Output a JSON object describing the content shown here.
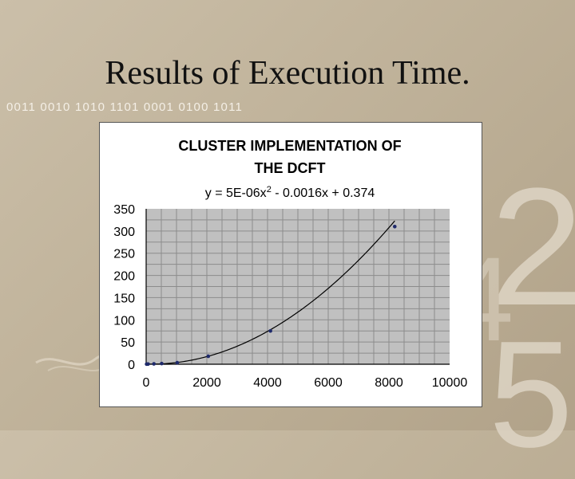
{
  "slide": {
    "title": "Results of Execution Time.",
    "binary_text": "0011 0010 1010 1101 0001 0100 1011",
    "deco_digits": [
      "2",
      "4",
      "5"
    ]
  },
  "chart_data": {
    "type": "scatter",
    "title_lines": [
      "CLUSTER IMPLEMENTATION OF",
      "THE DCFT"
    ],
    "trendline_equation": {
      "prefix": "y = 5E-06x",
      "exponent": "2",
      "suffix": " - 0.0016x + 0.374"
    },
    "trendline_coefficients": {
      "a": 5e-06,
      "b": -0.0016,
      "c": 0.374
    },
    "x": [
      16,
      64,
      256,
      512,
      1024,
      2048,
      4096,
      8192
    ],
    "y": [
      0.3,
      0.4,
      0.8,
      1.5,
      3.5,
      18,
      75,
      310
    ],
    "xlim": [
      0,
      10000
    ],
    "ylim": [
      0,
      350
    ],
    "x_ticks": [
      0,
      2000,
      4000,
      6000,
      8000,
      10000
    ],
    "y_ticks": [
      0,
      50,
      100,
      150,
      200,
      250,
      300,
      350
    ],
    "x_minor_step": 500,
    "y_minor_step": 25,
    "grid": true,
    "legend": "none",
    "colors": {
      "plot_area": "#c0c0c0",
      "grid": "#8c8c8c",
      "marker": "#1f2a6b",
      "trendline": "#000000"
    }
  }
}
